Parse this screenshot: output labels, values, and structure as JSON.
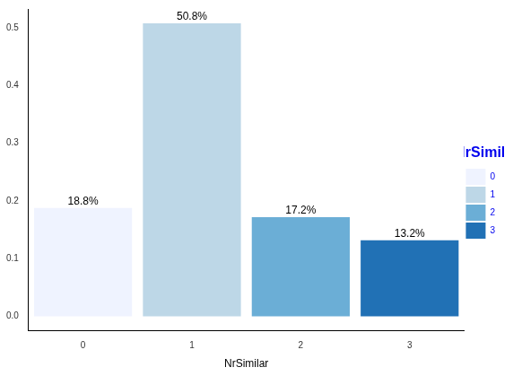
{
  "chart_data": {
    "type": "bar",
    "x_label": "NrSimilar",
    "categories": [
      "0",
      "1",
      "2",
      "3"
    ],
    "values": [
      0.188,
      0.508,
      0.172,
      0.132
    ],
    "value_labels": [
      "18.8%",
      "50.8%",
      "17.2%",
      "13.2%"
    ],
    "colors": [
      "#eff3ff",
      "#bdd7e7",
      "#6baed6",
      "#2171b5"
    ],
    "ylim": [
      -0.025,
      0.533
    ],
    "yticks": [
      {
        "value": 0,
        "label": "0.0"
      },
      {
        "value": 0.1,
        "label": "0.1"
      },
      {
        "value": 0.2,
        "label": "0.2"
      },
      {
        "value": 0.3,
        "label": "0.3"
      },
      {
        "value": 0.4,
        "label": "0.4"
      },
      {
        "value": 0.5,
        "label": "0.5"
      }
    ],
    "grid": false,
    "data_labels": true,
    "legend": "right",
    "legend_title": "NrSimila"
  }
}
